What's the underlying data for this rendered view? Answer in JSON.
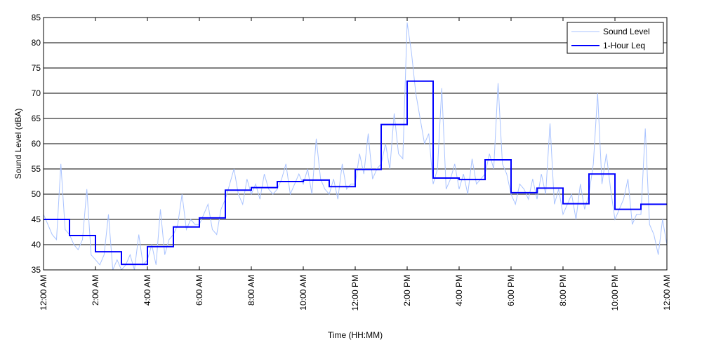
{
  "chart_data": {
    "type": "line",
    "title": "",
    "xlabel": "Time (HH:MM)",
    "ylabel": "Sound Level (dBA)",
    "ylim": [
      35,
      85
    ],
    "xlim_hours": [
      0,
      24
    ],
    "yticks": [
      35,
      40,
      45,
      50,
      55,
      60,
      65,
      70,
      75,
      80,
      85
    ],
    "xtick_hours": [
      0,
      2,
      4,
      6,
      8,
      10,
      12,
      14,
      16,
      18,
      20,
      22,
      24
    ],
    "xtick_labels": [
      "12:00 AM",
      "2:00 AM",
      "4:00 AM",
      "6:00 AM",
      "8:00 AM",
      "10:00 AM",
      "12:00 PM",
      "2:00 PM",
      "4:00 PM",
      "6:00 PM",
      "8:00 PM",
      "10:00 PM",
      "12:00 AM"
    ],
    "grid": "horizontal",
    "legend_position": "top-right",
    "series": [
      {
        "name": "Sound Level",
        "color": "#a9c3ff",
        "sample_interval_minutes": 10,
        "values": [
          46,
          44,
          42,
          41,
          56,
          43,
          42,
          40,
          39,
          41,
          51,
          38,
          37,
          36,
          38,
          46,
          35,
          37,
          35,
          36,
          38,
          35,
          42,
          36,
          37,
          40,
          36,
          47,
          38,
          41,
          42,
          44,
          50,
          43,
          45,
          44,
          44,
          46,
          48,
          43,
          42,
          47,
          49,
          52,
          55,
          50,
          48,
          53,
          50,
          52,
          49,
          54,
          51,
          50,
          51,
          53,
          56,
          50,
          52,
          54,
          52,
          55,
          50,
          61,
          53,
          51,
          50,
          53,
          49,
          56,
          51,
          52,
          52,
          58,
          54,
          62,
          53,
          55,
          56,
          60,
          55,
          66,
          58,
          57,
          84,
          78,
          70,
          65,
          60,
          62,
          52,
          55,
          71,
          51,
          53,
          56,
          51,
          54,
          50,
          57,
          52,
          53,
          54,
          58,
          55,
          72,
          56,
          54,
          50,
          48,
          52,
          51,
          49,
          53,
          49,
          54,
          50,
          64,
          48,
          51,
          46,
          48,
          50,
          45,
          52,
          47,
          50,
          56,
          70,
          52,
          58,
          51,
          45,
          47,
          49,
          53,
          44,
          46,
          46,
          63,
          44,
          42,
          38,
          45,
          40
        ]
      },
      {
        "name": "1-Hour Leq",
        "color": "#0000ff",
        "step_hours": 1,
        "values": [
          45.0,
          41.8,
          38.6,
          36.1,
          39.6,
          43.5,
          45.3,
          50.8,
          51.3,
          52.5,
          52.8,
          51.5,
          54.9,
          63.8,
          72.4,
          53.2,
          52.9,
          56.8,
          50.3,
          51.2,
          48.1,
          54.0,
          47.0,
          48.0
        ]
      }
    ]
  }
}
